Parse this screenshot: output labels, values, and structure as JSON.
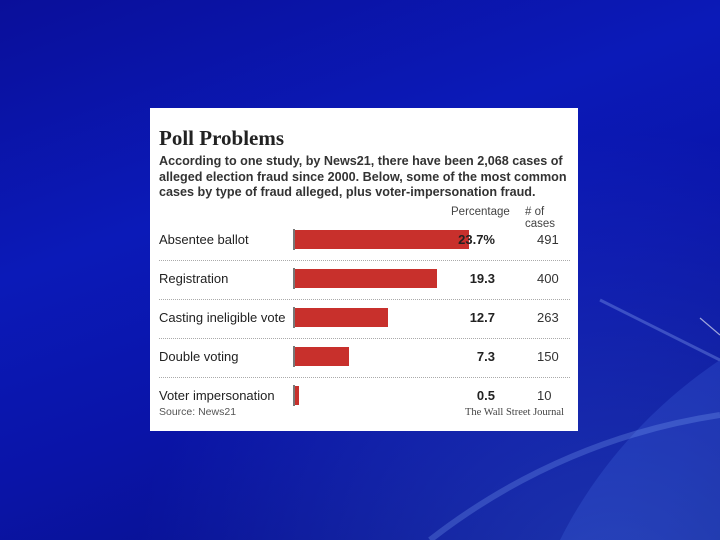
{
  "chart_data": {
    "type": "bar",
    "orientation": "horizontal",
    "title": "Poll Problems",
    "description": "According to one study, by News21, there have been 2,068 cases of alleged election fraud since 2000. Below, some of the most common cases by type of fraud alleged, plus voter-impersonation fraud.",
    "column_headers": {
      "percentage": "Percentage",
      "cases": "# of cases"
    },
    "categories": [
      "Absentee ballot",
      "Registration",
      "Casting ineligible vote",
      "Double voting",
      "Voter impersonation"
    ],
    "percentages": [
      23.7,
      19.3,
      12.7,
      7.3,
      0.5
    ],
    "percentage_labels": [
      "23.7%",
      "19.3",
      "12.7",
      "7.3",
      "0.5"
    ],
    "cases": [
      "491",
      "400",
      "263",
      "150",
      "10"
    ],
    "xlim": [
      0,
      25
    ],
    "source": "Source: News21",
    "credit": "The Wall Street Journal",
    "bar_color": "#c8302c"
  }
}
